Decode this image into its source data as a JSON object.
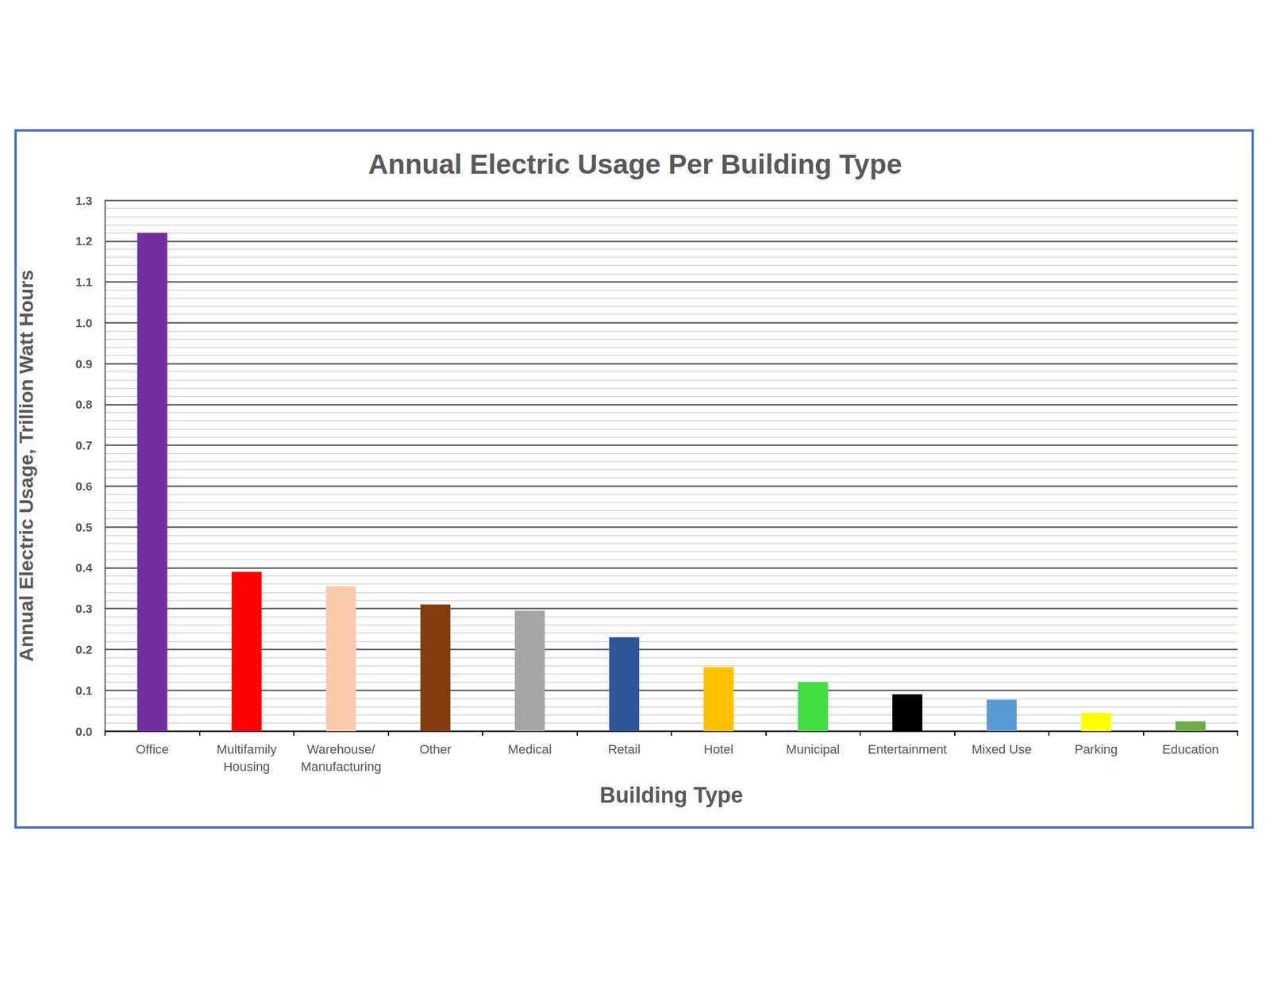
{
  "chart_data": {
    "type": "bar",
    "title": "Annual Electric Usage Per Building Type",
    "x_label": "Building Type",
    "y_label": "Annual Electric Usage, Trillion Watt Hours",
    "categories": [
      "Office",
      "Multifamily\nHousing",
      "Warehouse/\nManufacturing",
      "Other",
      "Medical",
      "Retail",
      "Hotel",
      "Municipal",
      "Entertainment",
      "Mixed Use",
      "Parking",
      "Education"
    ],
    "values": [
      1.22,
      0.39,
      0.355,
      0.31,
      0.295,
      0.23,
      0.157,
      0.12,
      0.09,
      0.077,
      0.045,
      0.024
    ],
    "colors": [
      "#7030a0",
      "#ff0000",
      "#f8cbad",
      "#843c0c",
      "#a5a5a5",
      "#2f5597",
      "#ffc000",
      "#44dd44",
      "#000000",
      "#5b9bd5",
      "#ffff00",
      "#70ad47"
    ],
    "ylim": [
      0,
      1.3
    ],
    "yticks": [
      {
        "value": 0,
        "label": "0.0"
      },
      0.1,
      0.2,
      0.3,
      0.4,
      0.5,
      0.6,
      0.7,
      0.8,
      0.9,
      {
        "value": 1,
        "label": "1.0"
      },
      1.1,
      1.2,
      1.3
    ],
    "grid": true
  }
}
